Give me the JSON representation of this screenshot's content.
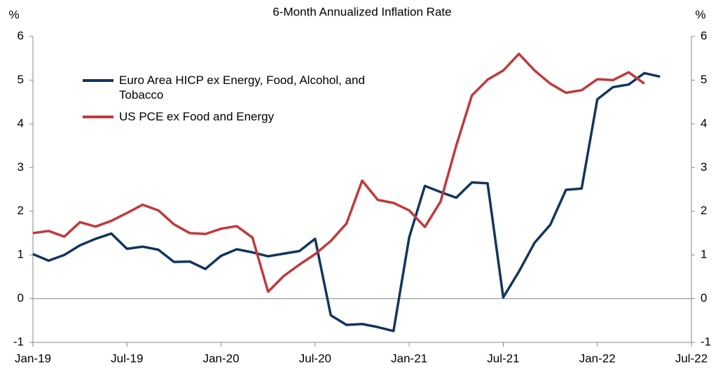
{
  "chart_data": {
    "type": "line",
    "title": "6-Month Annualized Inflation Rate",
    "y_label": "%",
    "y2_label": "%",
    "categories": [
      "Jan-19",
      null,
      null,
      null,
      null,
      null,
      "Jul-19",
      null,
      null,
      null,
      null,
      null,
      "Jan-20",
      null,
      null,
      null,
      null,
      null,
      "Jul-20",
      null,
      null,
      null,
      null,
      null,
      "Jan-21",
      null,
      null,
      null,
      null,
      null,
      "Jul-21",
      null,
      null,
      null,
      null,
      null,
      "Jan-22",
      null,
      null,
      null,
      null,
      null,
      "Jul-22"
    ],
    "series": [
      {
        "name": "Euro Area HICP ex Energy, Food, Alcohol, and Tobacco",
        "color": "#12355f",
        "values": [
          1.02,
          0.87,
          1.0,
          1.22,
          1.37,
          1.49,
          1.14,
          1.19,
          1.12,
          0.84,
          0.85,
          0.68,
          0.98,
          1.13,
          1.06,
          0.97,
          1.03,
          1.09,
          1.37,
          -0.38,
          -0.6,
          -0.58,
          -0.65,
          -0.74,
          1.4,
          2.58,
          2.44,
          2.31,
          2.66,
          2.64,
          0.03,
          0.62,
          1.28,
          1.69,
          2.49,
          2.52,
          4.56,
          4.84,
          4.9,
          5.16,
          5.08,
          null,
          null
        ]
      },
      {
        "name": "US PCE ex Food and Energy",
        "color": "#c1393b",
        "values": [
          1.5,
          1.55,
          1.42,
          1.75,
          1.65,
          1.78,
          1.96,
          2.15,
          2.02,
          1.7,
          1.5,
          1.48,
          1.6,
          1.66,
          1.4,
          0.16,
          0.52,
          0.78,
          1.02,
          1.32,
          1.72,
          2.7,
          2.26,
          2.19,
          2.02,
          1.64,
          2.22,
          3.5,
          4.65,
          5.01,
          5.22,
          5.6,
          5.22,
          4.92,
          4.71,
          4.77,
          5.02,
          5.0,
          5.18,
          4.92,
          null,
          null,
          null
        ]
      }
    ],
    "ylim": [
      -1,
      6
    ],
    "yticks": [
      -1,
      0,
      1,
      2,
      3,
      4,
      5,
      6
    ],
    "y2lim": [
      -1,
      6
    ],
    "y2ticks": [
      -1,
      0,
      1,
      2,
      3,
      4,
      5,
      6
    ],
    "legend": "upper-left"
  }
}
